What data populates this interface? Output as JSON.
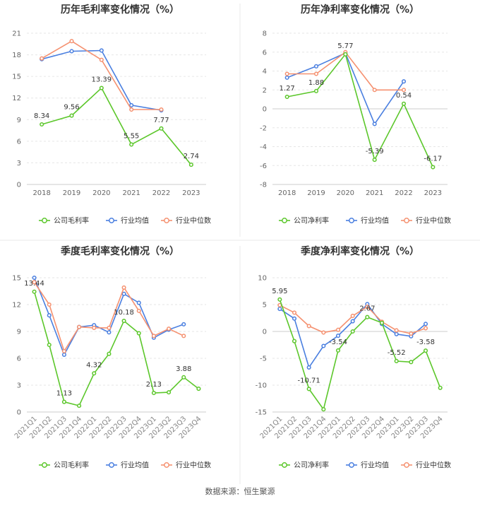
{
  "source_text": "数据来源：恒生聚源",
  "series_colors": {
    "company": "#5cc72b",
    "industry_avg": "#4a7fe0",
    "industry_median": "#f59170"
  },
  "chart_data": [
    {
      "type": "line",
      "title": "历年毛利率变化情况（%）",
      "categories": [
        "2018",
        "2019",
        "2020",
        "2021",
        "2022",
        "2023"
      ],
      "ylim": [
        0,
        21
      ],
      "yticks": [
        0,
        3,
        6,
        9,
        12,
        15,
        18,
        21
      ],
      "label_decimals": 2,
      "rotate_xlabels": false,
      "series": [
        {
          "name": "公司毛利率",
          "key": "company",
          "values": [
            8.34,
            9.56,
            13.39,
            5.55,
            7.77,
            2.74
          ]
        },
        {
          "name": "行业均值",
          "key": "industry_avg",
          "values": [
            17.4,
            18.5,
            18.6,
            11.0,
            10.3,
            null
          ]
        },
        {
          "name": "行业中位数",
          "key": "industry_median",
          "values": [
            17.5,
            19.9,
            17.3,
            10.4,
            10.4,
            null
          ]
        }
      ],
      "data_labels": [
        {
          "index": 0,
          "text": "8.34"
        },
        {
          "index": 1,
          "text": "9.56"
        },
        {
          "index": 2,
          "text": "13.39"
        },
        {
          "index": 3,
          "text": "5.55"
        },
        {
          "index": 4,
          "text": "7.77"
        },
        {
          "index": 5,
          "text": "2.74"
        }
      ]
    },
    {
      "type": "line",
      "title": "历年净利率变化情况（%）",
      "categories": [
        "2018",
        "2019",
        "2020",
        "2021",
        "2022",
        "2023"
      ],
      "ylim": [
        -8,
        8
      ],
      "yticks": [
        -8,
        -6,
        -4,
        -2,
        0,
        2,
        4,
        6,
        8
      ],
      "label_decimals": 2,
      "rotate_xlabels": false,
      "series": [
        {
          "name": "公司净利率",
          "key": "company",
          "values": [
            1.27,
            1.88,
            5.77,
            -5.39,
            0.54,
            -6.17
          ]
        },
        {
          "name": "行业均值",
          "key": "industry_avg",
          "values": [
            3.3,
            4.5,
            5.9,
            -1.6,
            2.9,
            null
          ]
        },
        {
          "name": "行业中位数",
          "key": "industry_median",
          "values": [
            3.7,
            3.7,
            6.0,
            2.0,
            2.0,
            null
          ]
        }
      ],
      "data_labels": [
        {
          "index": 0,
          "text": "1.27"
        },
        {
          "index": 1,
          "text": "1.88"
        },
        {
          "index": 2,
          "text": "5.77"
        },
        {
          "index": 3,
          "text": "-5.39"
        },
        {
          "index": 4,
          "text": "0.54"
        },
        {
          "index": 5,
          "text": "-6.17"
        }
      ]
    },
    {
      "type": "line",
      "title": "季度毛利率变化情况（%）",
      "categories": [
        "2021Q1",
        "2021Q2",
        "2021Q3",
        "2021Q4",
        "2022Q1",
        "2022Q2",
        "2022Q3",
        "2022Q4",
        "2023Q1",
        "2023Q2",
        "2023Q3",
        "2023Q4"
      ],
      "ylim": [
        0,
        15
      ],
      "yticks": [
        0,
        3,
        6,
        9,
        12,
        15
      ],
      "rotate_xlabels": true,
      "series": [
        {
          "name": "公司毛利率",
          "key": "company",
          "values": [
            13.44,
            7.5,
            1.13,
            0.7,
            4.32,
            6.5,
            10.18,
            8.8,
            2.13,
            2.2,
            3.88,
            2.6
          ]
        },
        {
          "name": "行业均值",
          "key": "industry_avg",
          "values": [
            15.0,
            10.8,
            6.4,
            9.5,
            9.7,
            8.9,
            13.2,
            12.2,
            8.3,
            9.2,
            9.8,
            null
          ]
        },
        {
          "name": "行业中位数",
          "key": "industry_median",
          "values": [
            14.5,
            12.0,
            6.8,
            9.5,
            9.4,
            9.4,
            13.9,
            11.3,
            8.5,
            9.3,
            8.5,
            null
          ]
        }
      ],
      "data_labels": [
        {
          "index": 0,
          "text": "13.44"
        },
        {
          "index": 2,
          "text": "1.13"
        },
        {
          "index": 4,
          "text": "4.32"
        },
        {
          "index": 6,
          "text": "10.18"
        },
        {
          "index": 8,
          "text": "2.13"
        },
        {
          "index": 10,
          "text": "3.88"
        }
      ]
    },
    {
      "type": "line",
      "title": "季度净利率变化情况（%）",
      "categories": [
        "2021Q1",
        "2021Q2",
        "2021Q3",
        "2021Q4",
        "2022Q1",
        "2022Q2",
        "2022Q3",
        "2022Q4",
        "2023Q1",
        "2023Q2",
        "2023Q3",
        "2023Q4"
      ],
      "ylim": [
        -15,
        10
      ],
      "yticks": [
        -15,
        -10,
        -5,
        0,
        5,
        10
      ],
      "rotate_xlabels": true,
      "series": [
        {
          "name": "公司净利率",
          "key": "company",
          "values": [
            5.95,
            -1.8,
            -10.71,
            -14.5,
            -3.54,
            0.0,
            2.67,
            1.6,
            -5.52,
            -5.7,
            -3.58,
            -10.5
          ]
        },
        {
          "name": "行业均值",
          "key": "industry_avg",
          "values": [
            4.2,
            2.4,
            -6.7,
            -2.7,
            -0.8,
            1.9,
            5.1,
            1.4,
            -0.5,
            -0.9,
            1.4,
            null
          ]
        },
        {
          "name": "行业中位数",
          "key": "industry_median",
          "values": [
            4.9,
            3.5,
            1.0,
            -0.2,
            0.3,
            2.9,
            4.6,
            1.8,
            0.2,
            -0.4,
            0.6,
            null
          ]
        }
      ],
      "data_labels": [
        {
          "index": 0,
          "text": "5.95"
        },
        {
          "index": 2,
          "text": "-10.71"
        },
        {
          "index": 4,
          "text": "-3.54"
        },
        {
          "index": 6,
          "text": "2.67"
        },
        {
          "index": 8,
          "text": "-5.52"
        },
        {
          "index": 10,
          "text": "-3.58"
        }
      ]
    }
  ]
}
